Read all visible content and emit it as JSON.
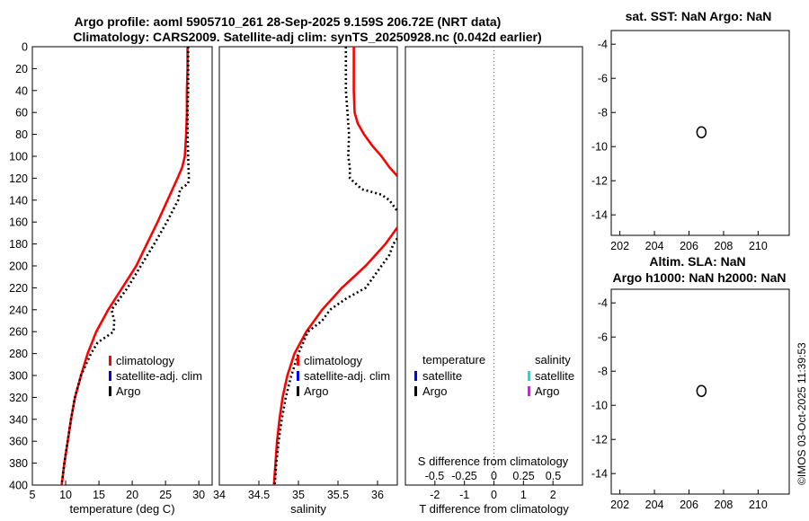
{
  "titles": {
    "main_line1": "Argo profile: aoml 5905710_261 28-Sep-2025 9.159S 206.72E (NRT data)",
    "main_line2": "Climatology: CARS2009. Satellite-adj clim: synTS_20250928.nc (0.042d earlier)",
    "sst": "sat. SST: NaN Argo: NaN",
    "sla_line1": "Altim. SLA: NaN",
    "sla_line2": "Argo h1000: NaN h2000: NaN"
  },
  "timestamp": "©IMOS 03-Oct-2025 11:39:53",
  "colors": {
    "climatology": "#ff0000",
    "satellite": "#0000ff",
    "argo": "#000000",
    "sal_satellite": "#00e5ee",
    "sal_argo": "#ff00ff"
  },
  "chart_data": [
    {
      "type": "line",
      "id": "temperature",
      "xlabel": "temperature (deg C)",
      "ylabel": "",
      "xlim": [
        5,
        32
      ],
      "ylim": [
        400,
        0
      ],
      "xticks": [
        "5",
        "10",
        "15",
        "20",
        "25",
        "30"
      ],
      "yticks": [
        "0",
        "20",
        "40",
        "60",
        "80",
        "100",
        "120",
        "140",
        "160",
        "180",
        "200",
        "220",
        "240",
        "260",
        "280",
        "300",
        "320",
        "340",
        "360",
        "380",
        "400"
      ],
      "legend": [
        "climatology",
        "satellite-adj. clim",
        "Argo"
      ],
      "series": [
        {
          "name": "climatology",
          "depth": [
            0,
            20,
            40,
            60,
            80,
            100,
            110,
            120,
            140,
            160,
            180,
            200,
            220,
            240,
            260,
            280,
            300,
            320,
            340,
            360,
            380,
            400
          ],
          "values": [
            28.3,
            28.3,
            28.2,
            28.2,
            28.1,
            27.9,
            27.5,
            26.8,
            25.3,
            23.8,
            22.2,
            20.6,
            18.5,
            16.4,
            14.6,
            13.3,
            12.3,
            11.4,
            10.8,
            10.3,
            9.8,
            9.4
          ]
        },
        {
          "name": "Argo",
          "depth": [
            0,
            20,
            40,
            60,
            80,
            100,
            120,
            125,
            130,
            140,
            160,
            180,
            200,
            220,
            240,
            250,
            260,
            270,
            280,
            300,
            320,
            340,
            360,
            380,
            400
          ],
          "values": [
            28.4,
            28.4,
            28.4,
            28.3,
            28.3,
            28.4,
            28.5,
            28.4,
            27.2,
            26.9,
            25.2,
            23.3,
            21.3,
            19.3,
            16.9,
            17.3,
            17.2,
            14.8,
            13.8,
            12.3,
            11.4,
            10.8,
            10.3,
            9.8,
            9.4
          ]
        }
      ]
    },
    {
      "type": "line",
      "id": "salinity",
      "xlabel": "salinity",
      "ylabel": "",
      "xlim": [
        34,
        36.25
      ],
      "ylim": [
        400,
        0
      ],
      "xticks": [
        "34",
        "34.5",
        "35",
        "35.5",
        "36"
      ],
      "legend": [
        "climatology",
        "satellite-adj. clim",
        "Argo"
      ],
      "series": [
        {
          "name": "climatology",
          "depth": [
            0,
            20,
            40,
            60,
            70,
            80,
            90,
            100,
            110,
            118,
            165,
            180,
            200,
            220,
            240,
            260,
            280,
            300,
            320,
            340,
            360,
            380,
            400
          ],
          "values": [
            35.7,
            35.7,
            35.7,
            35.71,
            35.75,
            35.83,
            35.93,
            36.05,
            36.15,
            36.25,
            36.25,
            36.1,
            35.85,
            35.55,
            35.3,
            35.1,
            34.95,
            34.86,
            34.8,
            34.76,
            34.73,
            34.71,
            34.69
          ],
          "break_after_index": 9
        },
        {
          "name": "Argo",
          "depth": [
            0,
            20,
            40,
            60,
            80,
            100,
            110,
            120,
            130,
            135,
            140,
            145,
            150,
            175,
            180,
            190,
            200,
            210,
            220,
            230,
            240,
            250,
            260,
            280,
            300,
            320,
            340,
            360,
            380,
            400
          ],
          "values": [
            35.6,
            35.6,
            35.6,
            35.62,
            35.64,
            35.63,
            35.65,
            35.65,
            35.8,
            36.05,
            36.15,
            36.2,
            36.25,
            36.25,
            36.2,
            36.15,
            36.05,
            35.95,
            35.85,
            35.6,
            35.4,
            35.3,
            35.12,
            35.0,
            34.91,
            34.84,
            34.79,
            34.75,
            34.72,
            34.7
          ],
          "break_after_index": 12
        }
      ]
    },
    {
      "type": "line",
      "id": "difference",
      "xlabel": "T difference from climatology",
      "top_label": "S difference from climatology",
      "xlim": [
        -3,
        3
      ],
      "xticks": [
        "-2",
        "-1",
        "0",
        "1",
        "2"
      ],
      "top_ticks": [
        "-0.5",
        "-0.25",
        "0",
        "0.25",
        "0.5"
      ],
      "legend_temperature": {
        "header": "temperature",
        "items": [
          "satellite",
          "Argo"
        ]
      },
      "legend_salinity": {
        "header": "salinity",
        "items": [
          "satellite",
          "Argo"
        ]
      },
      "series": []
    },
    {
      "type": "scatter",
      "id": "sst-map",
      "xlim": [
        201.5,
        211.8
      ],
      "ylim": [
        -15.2,
        -3.2
      ],
      "xticks": [
        "202",
        "204",
        "206",
        "208",
        "210"
      ],
      "yticks": [
        "-4",
        "-6",
        "-8",
        "-10",
        "-12",
        "-14"
      ],
      "points": [
        {
          "x": 206.72,
          "y": -9.159
        }
      ]
    },
    {
      "type": "scatter",
      "id": "sla-map",
      "xlim": [
        201.5,
        211.8
      ],
      "ylim": [
        -15.2,
        -3.2
      ],
      "xticks": [
        "202",
        "204",
        "206",
        "208",
        "210"
      ],
      "yticks": [
        "-4",
        "-6",
        "-8",
        "-10",
        "-12",
        "-14"
      ],
      "points": [
        {
          "x": 206.72,
          "y": -9.159
        }
      ]
    }
  ]
}
